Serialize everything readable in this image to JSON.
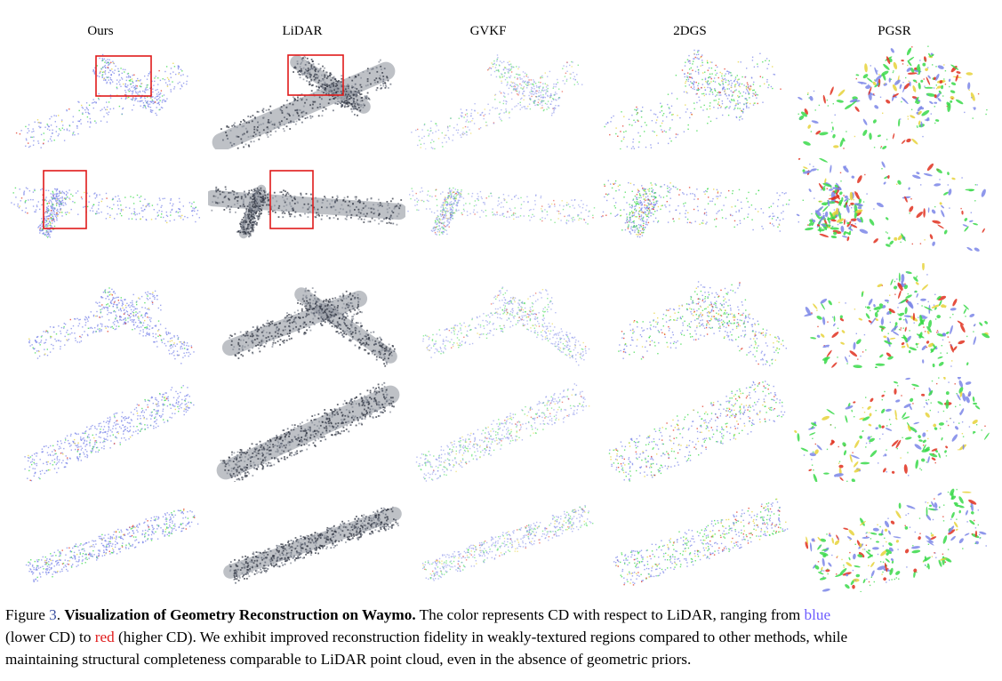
{
  "columns": [
    "Ours",
    "LiDAR",
    "GVKF",
    "2DGS",
    "PGSR"
  ],
  "rows": [
    {
      "ours": "street crossing, point cloud",
      "lidar": "street crossing, rgb point cloud"
    },
    {
      "ours": "road segment",
      "lidar": "road segment"
    },
    {
      "ours": "curved intersection",
      "lidar": "curved intersection"
    },
    {
      "ours": "long diagonal road",
      "lidar": "long diagonal road"
    },
    {
      "ours": "long road",
      "lidar": "long road"
    }
  ],
  "colors": {
    "low_cd": "#7b86e8",
    "mid_cd": "#39d94a",
    "high_cd": "#e0301e",
    "yellow": "#e6d23a",
    "lidar_dark": "#2f3440",
    "lidar_gray": "#8a8f99",
    "highlight_box": "#e01a1a"
  },
  "caption": {
    "figure_label": "Figure",
    "figure_number": "3",
    "title": "Visualization of Geometry Reconstruction on Waymo.",
    "text1": " The color represents CD with respect to LiDAR, ranging from ",
    "blue_word": "blue",
    "text2": "(lower CD) to ",
    "red_word": "red",
    "text3": " (higher CD). We exhibit improved reconstruction fidelity in weakly-textured regions compared to other methods, while",
    "line3": "maintaining structural completeness comparable to LiDAR point cloud, even in the absence of geometric priors."
  }
}
